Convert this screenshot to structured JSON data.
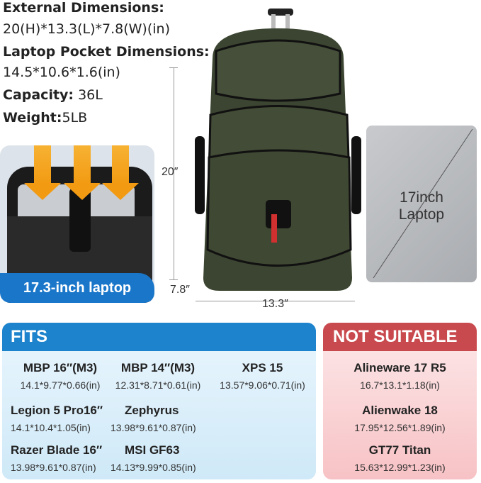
{
  "specs": {
    "external_label": "External Dimensions:",
    "external_value": "20(H)*13.3(L)*7.8(W)(in)",
    "laptop_pocket_label": "Laptop Pocket Dimensions:",
    "laptop_pocket_value": "14.5*10.6*1.6(in)",
    "capacity_label": "Capacity:",
    "capacity_value": " 36L",
    "weight_label": "Weight:",
    "weight_value": "5LB"
  },
  "inset": {
    "label": "17.3-inch laptop"
  },
  "dimensions": {
    "height": "20″",
    "depth": "7.8″",
    "width": "13.3″"
  },
  "laptop_card": {
    "line1": "17inch",
    "line2": "Laptop"
  },
  "fits": {
    "title": "FITS",
    "items": [
      {
        "name": "MBP 16″(M3)",
        "size": "14.1*9.77*0.66(in)"
      },
      {
        "name": "MBP 14″(M3)",
        "size": "12.31*8.71*0.61(in)"
      },
      {
        "name": "XPS 15",
        "size": "13.57*9.06*0.71(in)"
      },
      {
        "name": "Legion 5 Pro16″",
        "size": "14.1*10.4*1.05(in)"
      },
      {
        "name": "Zephyrus",
        "size": "13.98*9.61*0.87(in)"
      },
      {
        "name": "Razer Blade 16″",
        "size": "13.98*9.61*0.87(in)"
      },
      {
        "name": "MSI GF63",
        "size": "14.13*9.99*0.85(in)"
      }
    ]
  },
  "not_suitable": {
    "title": "NOT SUITABLE",
    "items": [
      {
        "name": "Alineware 17 R5",
        "size": "16.7*13.1*1.18(in)"
      },
      {
        "name": "Alienwake 18",
        "size": "17.95*12.56*1.89(in)"
      },
      {
        "name": "GT77 Titan",
        "size": "15.63*12.99*1.23(in)"
      }
    ]
  },
  "colors": {
    "fits": "#1c83cc",
    "not_suitable": "#c94a4e",
    "backpack": "#3c4531",
    "label": "#1976c9"
  }
}
